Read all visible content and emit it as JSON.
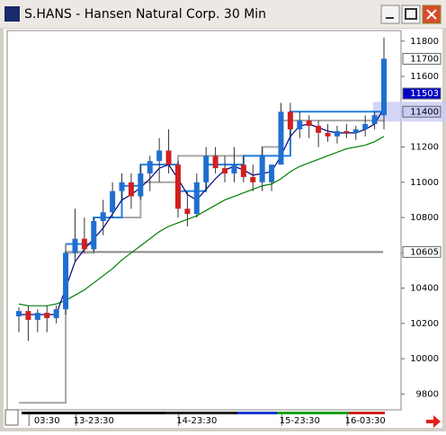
{
  "window": {
    "title": "S.HANS - Hansen Natural Corp. 30 Min"
  },
  "chart_data": {
    "type": "candlestick",
    "open": [
      10240,
      10270,
      10220,
      10260,
      10230,
      10280,
      10600,
      10680,
      10620,
      10780,
      10830,
      10950,
      11000,
      10920,
      11050,
      11120,
      11180,
      11100,
      10850,
      10820,
      11000,
      11150,
      11080,
      11050,
      11100,
      11030,
      11000,
      11000,
      11100,
      11400,
      11300,
      11350,
      11320,
      11280,
      11260,
      11290,
      11280,
      11300,
      11330,
      11380
    ],
    "high": [
      10290,
      10300,
      10280,
      10300,
      10300,
      10650,
      10850,
      10800,
      10800,
      10900,
      11000,
      11050,
      11050,
      11100,
      11150,
      11250,
      11300,
      11120,
      10950,
      11050,
      11200,
      11200,
      11150,
      11200,
      11150,
      11100,
      11200,
      11100,
      11450,
      11450,
      11400,
      11380,
      11350,
      11330,
      11320,
      11330,
      11320,
      11380,
      11400,
      11820
    ],
    "low": [
      10150,
      10100,
      10150,
      10150,
      10200,
      10250,
      10550,
      10600,
      10600,
      10700,
      10800,
      10900,
      10850,
      10900,
      10950,
      11000,
      11050,
      10800,
      10750,
      10800,
      10950,
      11050,
      11000,
      11000,
      11000,
      10950,
      10950,
      10950,
      11100,
      11250,
      11250,
      11250,
      11200,
      11230,
      11220,
      11250,
      11240,
      11260,
      11300,
      11300
    ],
    "close": [
      10270,
      10220,
      10260,
      10230,
      10280,
      10600,
      10680,
      10620,
      10780,
      10830,
      10950,
      11000,
      10920,
      11050,
      11120,
      11180,
      11100,
      10850,
      10820,
      11000,
      11150,
      11080,
      11050,
      11100,
      11030,
      11000,
      11150,
      11100,
      11400,
      11300,
      11350,
      11320,
      11280,
      11260,
      11290,
      11280,
      11300,
      11330,
      11380,
      11700
    ],
    "up_color": "#1f6fd0",
    "down_color": "#d02020",
    "lines": [
      {
        "color": "#a8a8a8",
        "step": true,
        "values": [
          9750,
          9750,
          9750,
          9750,
          9750,
          10600,
          10600,
          10600,
          10800,
          10800,
          10800,
          10800,
          10800,
          11000,
          11000,
          11000,
          11000,
          11150,
          11150,
          11150,
          11150,
          11150,
          11150,
          11150,
          11150,
          11150,
          11200,
          11200,
          11350,
          11350,
          11350,
          11350,
          11350,
          11350,
          11350,
          11350,
          11350,
          11350,
          11350,
          11350
        ]
      },
      {
        "color": "#2080e0",
        "step": true,
        "values": [
          null,
          null,
          null,
          null,
          null,
          10650,
          10650,
          10650,
          10800,
          10800,
          10800,
          10980,
          10980,
          11100,
          11100,
          11100,
          11100,
          10950,
          10950,
          10950,
          11100,
          11100,
          11100,
          11100,
          11150,
          11150,
          11150,
          11150,
          11150,
          11400,
          11400,
          11400,
          11400,
          11400,
          11400,
          11400,
          11400,
          11400,
          11400,
          11400
        ]
      },
      {
        "color": "#008000",
        "step": false,
        "values": [
          10310,
          10300,
          10300,
          10300,
          10310,
          10330,
          10360,
          10390,
          10430,
          10470,
          10510,
          10560,
          10600,
          10640,
          10680,
          10720,
          10750,
          10770,
          10790,
          10810,
          10840,
          10870,
          10900,
          10920,
          10940,
          10960,
          10980,
          10990,
          11020,
          11060,
          11090,
          11110,
          11130,
          11150,
          11170,
          11190,
          11200,
          11210,
          11230,
          11260
        ]
      },
      {
        "color": "#000080",
        "step": false,
        "values": [
          10250,
          10250,
          10250,
          10250,
          10250,
          10400,
          10550,
          10620,
          10680,
          10740,
          10820,
          10900,
          10930,
          10970,
          11020,
          11080,
          11100,
          11020,
          10930,
          10900,
          10960,
          11020,
          11070,
          11090,
          11070,
          11040,
          11050,
          11060,
          11150,
          11260,
          11320,
          11330,
          11310,
          11290,
          11280,
          11280,
          11280,
          11300,
          11330,
          11420
        ]
      }
    ],
    "ylim": [
      9710,
      11860
    ],
    "yticks": [
      9800,
      10000,
      10200,
      10400,
      10600,
      10800,
      11000,
      11200,
      11400,
      11600,
      11800
    ],
    "xticks": [
      {
        "value": 3,
        "label": "03:30"
      },
      {
        "value": 8,
        "label": "13-23:30"
      },
      {
        "value": 19,
        "label": "14-23:30"
      },
      {
        "value": 30,
        "label": "15-23:30"
      },
      {
        "value": 37,
        "label": "16-03:30"
      }
    ],
    "price_markers": [
      {
        "value": 11700,
        "bg": "#ffffff",
        "fg": "#000000"
      },
      {
        "value": 11503,
        "bg": "#0000c8",
        "fg": "#ffffff"
      },
      {
        "value": 11400,
        "bg": "#c8ccf4",
        "fg": "#000000",
        "band": true
      },
      {
        "value": 10605,
        "bg": "#ffffff",
        "fg": "#000000",
        "hline": true
      }
    ]
  }
}
